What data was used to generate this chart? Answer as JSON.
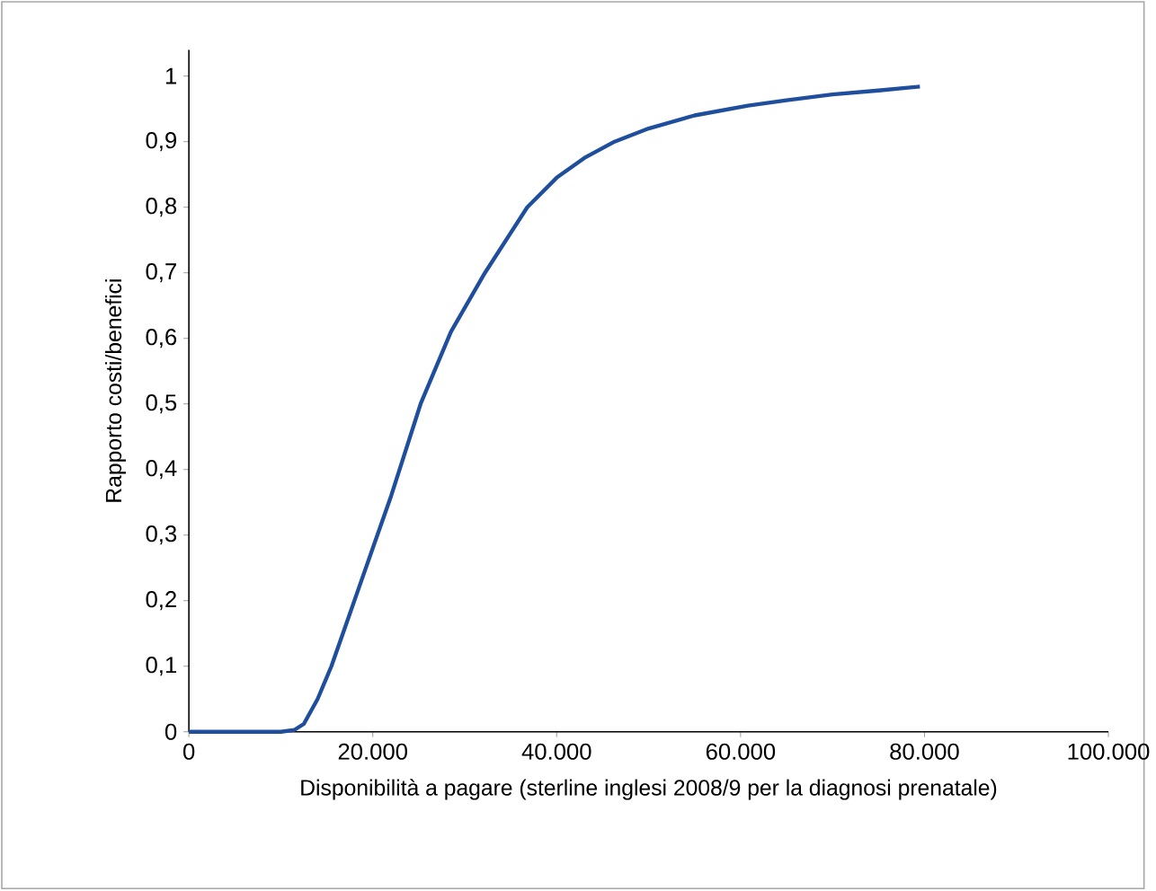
{
  "chart_data": {
    "type": "line",
    "xlabel": "Disponibilità a pagare (sterline inglesi 2008/9 per la diagnosi prenatale)",
    "ylabel": "Rapporto costi/benefici",
    "x": [
      0,
      10000,
      11500,
      12500,
      14000,
      15500,
      17000,
      18500,
      20000,
      22000,
      25200,
      28500,
      32200,
      36800,
      40000,
      43000,
      46300,
      50000,
      55000,
      60800,
      65000,
      70000,
      75000,
      79500
    ],
    "series": [
      {
        "color": "#1f4e9c",
        "values": [
          0,
          0,
          0.003,
          0.012,
          0.05,
          0.1,
          0.16,
          0.22,
          0.28,
          0.36,
          0.5,
          0.61,
          0.7,
          0.8,
          0.845,
          0.875,
          0.9,
          0.92,
          0.94,
          0.955,
          0.963,
          0.972,
          0.978,
          0.984
        ]
      }
    ],
    "xlim": [
      0,
      100000
    ],
    "ylim": [
      0,
      1.04
    ],
    "xticks": [
      0,
      {
        "value": 20000,
        "label": "20.000"
      },
      {
        "value": 40000,
        "label": "40.000"
      },
      {
        "value": 60000,
        "label": "60.000"
      },
      {
        "value": 80000,
        "label": "80.000"
      },
      {
        "value": 100000,
        "label": "100.000"
      }
    ],
    "yticks": [
      0,
      {
        "value": 0.1,
        "label": "0,1"
      },
      {
        "value": 0.2,
        "label": "0,2"
      },
      {
        "value": 0.3,
        "label": "0,3"
      },
      {
        "value": 0.4,
        "label": "0,4"
      },
      {
        "value": 0.5,
        "label": "0,5"
      },
      {
        "value": 0.6,
        "label": "0,6"
      },
      {
        "value": 0.7,
        "label": "0,7"
      },
      {
        "value": 0.8,
        "label": "0,8"
      },
      {
        "value": 0.9,
        "label": "0,9"
      },
      1
    ],
    "grid": false,
    "marker": "none",
    "line_style": "solid"
  }
}
